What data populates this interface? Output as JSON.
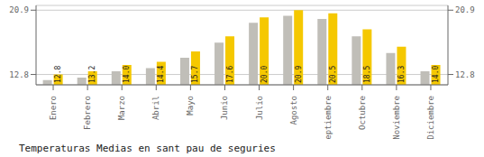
{
  "chart_data": {
    "type": "bar",
    "title": "Temperaturas Medias en sant pau de seguries",
    "categories": [
      "Enero",
      "Febrero",
      "Marzo",
      "Abril",
      "Mayo",
      "Junio",
      "Julio",
      "Agosto",
      "Septiembre",
      "Octubre",
      "Noviembre",
      "Diciembre"
    ],
    "series": [
      {
        "color": "#C0BEB8",
        "values": [
          12.1,
          12.4,
          13.2,
          13.6,
          14.9,
          16.8,
          19.3,
          20.2,
          19.8,
          17.6,
          15.5,
          13.2
        ]
      },
      {
        "color": "#F5C800",
        "values": [
          12.8,
          13.2,
          14.0,
          14.4,
          15.7,
          17.6,
          20.0,
          20.9,
          20.5,
          18.5,
          16.3,
          14.0
        ],
        "value_labels": [
          "12.8",
          "13.2",
          "14.0",
          "14.4",
          "15.7",
          "17.6",
          "20.0",
          "20.9",
          "20.5",
          "18.5",
          "16.3",
          "14.0"
        ],
        "data_labels": true
      }
    ],
    "ylim": [
      11.5,
      21.5
    ],
    "yticks": [
      12.8,
      20.9
    ],
    "y2lim": [
      11.5,
      21.5
    ],
    "y2ticks": [
      12.8,
      20.9
    ],
    "grid": true
  }
}
